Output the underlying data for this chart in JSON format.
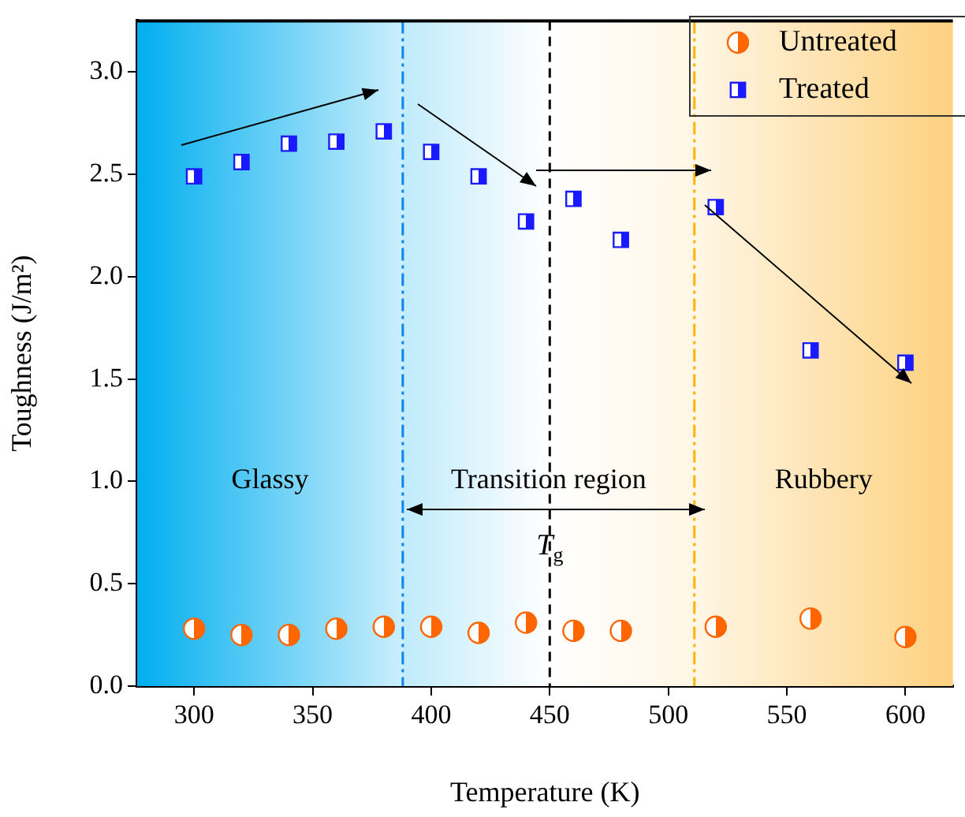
{
  "chart_data": {
    "type": "scatter",
    "xlabel": "Temperature (K)",
    "ylabel": "Toughness (J/m²)",
    "xlim": [
      276,
      620
    ],
    "xticks": [
      300,
      350,
      400,
      450,
      500,
      550,
      600
    ],
    "ylim": [
      0,
      3.25
    ],
    "yticks": [
      {
        "value": 0,
        "label": "0.0"
      },
      {
        "value": 0.5,
        "label": "0.5"
      },
      {
        "value": 1,
        "label": "1.0"
      },
      {
        "value": 1.5,
        "label": "1.5"
      },
      {
        "value": 2,
        "label": "2.0"
      },
      {
        "value": 2.5,
        "label": "2.5"
      },
      {
        "value": 3,
        "label": "3.0"
      }
    ],
    "grid": false,
    "legend": "top right",
    "series": [
      {
        "name": "Untreated",
        "color": "#ff6600",
        "marker": "circle",
        "x": [
          300,
          320,
          340,
          360,
          380,
          400,
          420,
          440,
          460,
          480,
          520,
          560,
          600
        ],
        "values": [
          0.28,
          0.25,
          0.25,
          0.28,
          0.29,
          0.29,
          0.26,
          0.31,
          0.27,
          0.27,
          0.29,
          0.33,
          0.24
        ]
      },
      {
        "name": "Treated",
        "color": "#1a1aff",
        "marker": "square",
        "x": [
          300,
          320,
          340,
          360,
          380,
          400,
          420,
          440,
          460,
          480,
          520,
          560,
          600
        ],
        "values": [
          2.49,
          2.56,
          2.65,
          2.66,
          2.71,
          2.61,
          2.49,
          2.27,
          2.38,
          2.18,
          2.34,
          1.64,
          1.58
        ]
      }
    ],
    "bands": [
      {
        "axis": "x",
        "from": 276,
        "to": 388,
        "label": "Glassy",
        "color": "#00aeef"
      },
      {
        "axis": "x",
        "from": 388,
        "to": 511,
        "label": "Transition region",
        "color": "#ffffff"
      },
      {
        "axis": "x",
        "from": 511,
        "to": 620,
        "label": "Rubbery",
        "color": "#fdd17f"
      }
    ],
    "ref_lines": [
      {
        "axis": "x",
        "value": 388,
        "color": "#0a84f0",
        "line_style": "dashdot"
      },
      {
        "axis": "x",
        "value": 450,
        "color": "#000000",
        "line_style": "dashed"
      },
      {
        "axis": "x",
        "value": 511,
        "color": "#ffb300",
        "line_style": "dashdot"
      }
    ],
    "annotations": [
      {
        "text": "T$_{g}$",
        "x": 450,
        "y": 0.68
      }
    ]
  }
}
